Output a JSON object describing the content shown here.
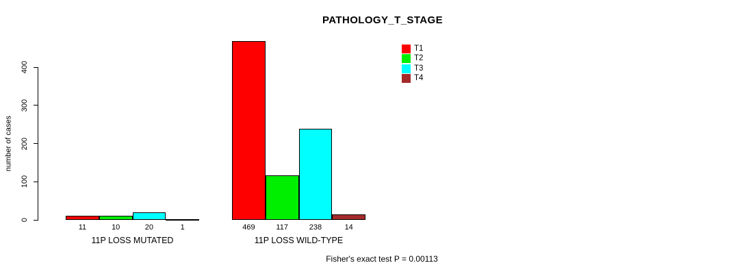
{
  "title": "PATHOLOGY_T_STAGE",
  "footer": "Fisher's exact test P = 0.00113",
  "chart_data": {
    "type": "bar",
    "title": "PATHOLOGY_T_STAGE",
    "xlabel": "",
    "ylabel": "number of cases",
    "categories": [
      "11P LOSS MUTATED",
      "11P LOSS WILD-TYPE"
    ],
    "series": [
      {
        "name": "T1",
        "color": "#FF0000",
        "values": [
          11,
          469
        ]
      },
      {
        "name": "T2",
        "color": "#00EE00",
        "values": [
          10,
          117
        ]
      },
      {
        "name": "T3",
        "color": "#00FFFF",
        "values": [
          20,
          238
        ]
      },
      {
        "name": "T4",
        "color": "#A52A2A",
        "values": [
          1,
          14
        ]
      }
    ],
    "bar_value_labels": [
      [
        "11",
        "10",
        "20",
        "1"
      ],
      [
        "469",
        "117",
        "238",
        "14"
      ]
    ],
    "yticks": [
      0,
      100,
      200,
      300,
      400
    ],
    "ylim": [
      0,
      469
    ],
    "grid": false,
    "legend_position": "top-right",
    "legend_entries": [
      "T1",
      "T2",
      "T3",
      "T4"
    ],
    "annotation": "Fisher's exact test P = 0.00113"
  }
}
